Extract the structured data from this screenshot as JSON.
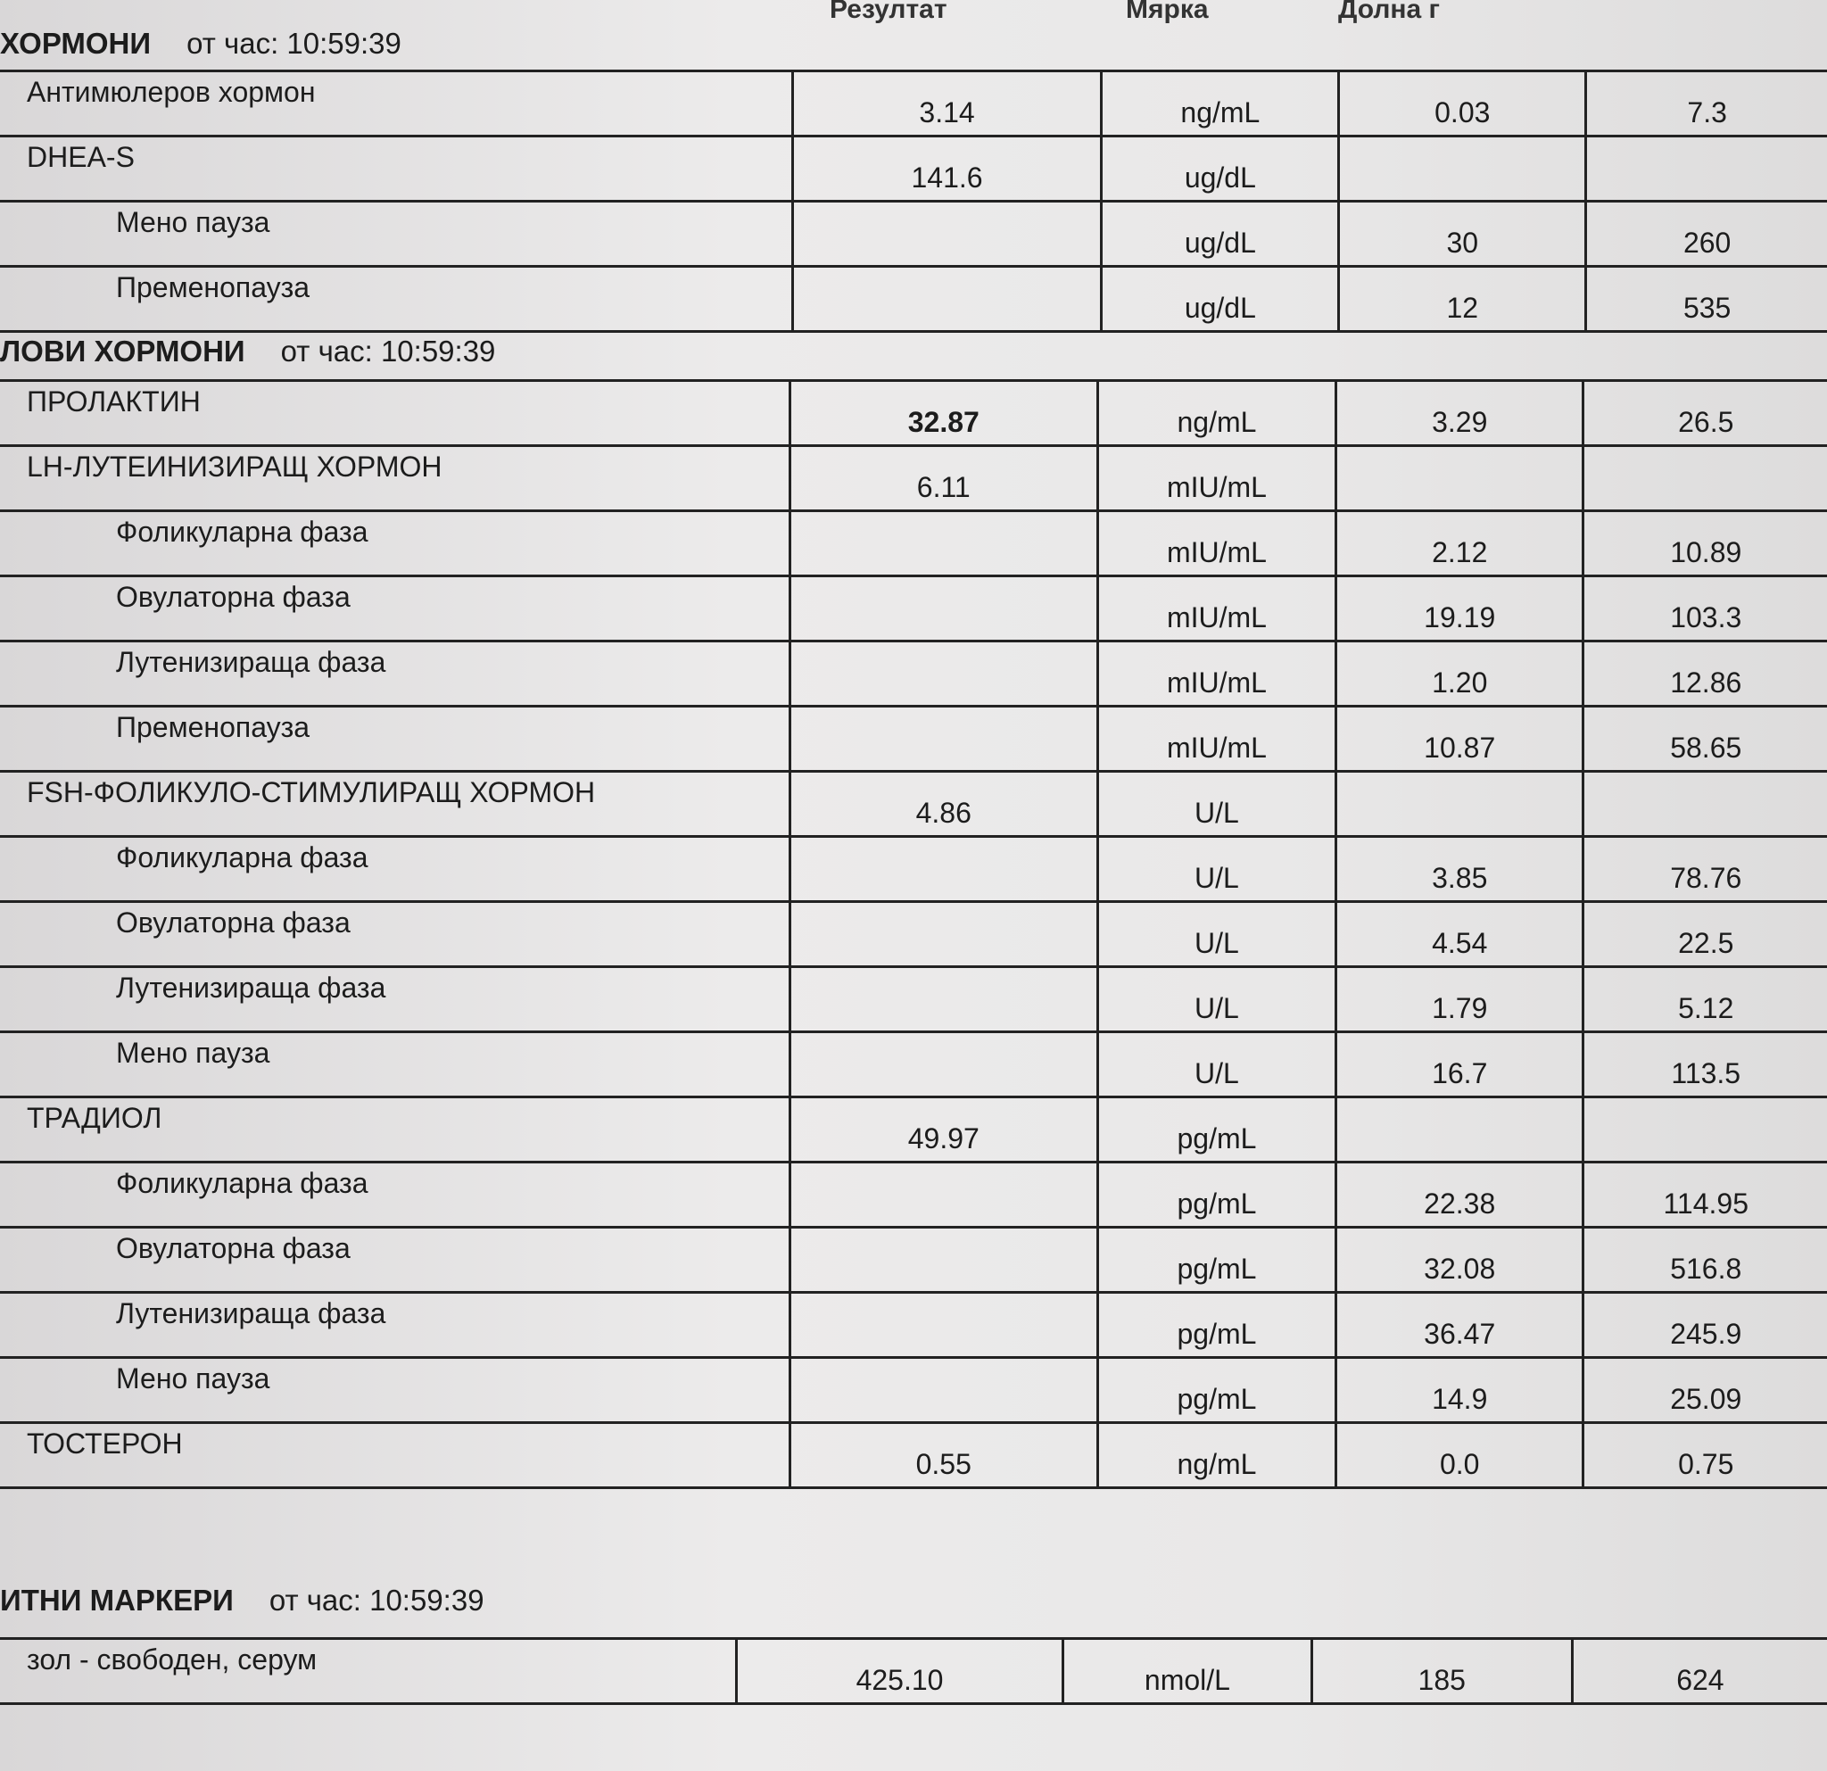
{
  "header": {
    "result": "Резултат",
    "unit": "Мярка",
    "low": "Долна г"
  },
  "sections": [
    {
      "title": "ХОРМОНИ",
      "time": "от час: 10:59:39",
      "rows": [
        {
          "name": "Антимюлеров хормон",
          "result": "3.14",
          "unit": "ng/mL",
          "low": "0.03",
          "high": "7.3",
          "sub": false
        },
        {
          "name": "DHEA-S",
          "result": "141.6",
          "unit": "ug/dL",
          "low": "",
          "high": "",
          "sub": false
        },
        {
          "name": "Мено пауза",
          "result": "",
          "unit": "ug/dL",
          "low": "30",
          "high": "260",
          "sub": true
        },
        {
          "name": "Пременопауза",
          "result": "",
          "unit": "ug/dL",
          "low": "12",
          "high": "535",
          "sub": true
        }
      ]
    },
    {
      "title": "ЛОВИ ХОРМОНИ",
      "time": "от час: 10:59:39",
      "rows": [
        {
          "name": "ПРОЛАКТИН",
          "result": "32.87",
          "unit": "ng/mL",
          "low": "3.29",
          "high": "26.5",
          "sub": false,
          "bold": true
        },
        {
          "name": "LH-ЛУТЕИНИЗИРАЩ ХОРМОН",
          "result": "6.11",
          "unit": "mIU/mL",
          "low": "",
          "high": "",
          "sub": false
        },
        {
          "name": "Фоликуларна фаза",
          "result": "",
          "unit": "mIU/mL",
          "low": "2.12",
          "high": "10.89",
          "sub": true
        },
        {
          "name": "Овулаторна фаза",
          "result": "",
          "unit": "mIU/mL",
          "low": "19.19",
          "high": "103.3",
          "sub": true
        },
        {
          "name": "Лутенизираща фаза",
          "result": "",
          "unit": "mIU/mL",
          "low": "1.20",
          "high": "12.86",
          "sub": true
        },
        {
          "name": "Пременопауза",
          "result": "",
          "unit": "mIU/mL",
          "low": "10.87",
          "high": "58.65",
          "sub": true
        },
        {
          "name": "FSH-ФОЛИКУЛО-СТИМУЛИРАЩ ХОРМОН",
          "result": "4.86",
          "unit": "U/L",
          "low": "",
          "high": "",
          "sub": false
        },
        {
          "name": "Фоликуларна фаза",
          "result": "",
          "unit": "U/L",
          "low": "3.85",
          "high": "78.76",
          "sub": true
        },
        {
          "name": "Овулаторна фаза",
          "result": "",
          "unit": "U/L",
          "low": "4.54",
          "high": "22.5",
          "sub": true
        },
        {
          "name": "Лутенизираща фаза",
          "result": "",
          "unit": "U/L",
          "low": "1.79",
          "high": "5.12",
          "sub": true
        },
        {
          "name": "Мено пауза",
          "result": "",
          "unit": "U/L",
          "low": "16.7",
          "high": "113.5",
          "sub": true
        },
        {
          "name": "ТРАДИОЛ",
          "result": "49.97",
          "unit": "pg/mL",
          "low": "",
          "high": "",
          "sub": false
        },
        {
          "name": "Фоликуларна фаза",
          "result": "",
          "unit": "pg/mL",
          "low": "22.38",
          "high": "114.95",
          "sub": true
        },
        {
          "name": "Овулаторна фаза",
          "result": "",
          "unit": "pg/mL",
          "low": "32.08",
          "high": "516.8",
          "sub": true
        },
        {
          "name": "Лутенизираща фаза",
          "result": "",
          "unit": "pg/mL",
          "low": "36.47",
          "high": "245.9",
          "sub": true
        },
        {
          "name": "Мено пауза",
          "result": "",
          "unit": "pg/mL",
          "low": "14.9",
          "high": "25.09",
          "sub": true
        },
        {
          "name": "ТОСТЕРОН",
          "result": "0.55",
          "unit": "ng/mL",
          "low": "0.0",
          "high": "0.75",
          "sub": false
        }
      ]
    },
    {
      "title": "ИТНИ МАРКЕРИ",
      "time": "от час: 10:59:39",
      "rows": [
        {
          "name": "зол - свободен, серум",
          "result": "425.10",
          "unit": "nmol/L",
          "low": "185",
          "high": "624",
          "sub": false
        }
      ]
    }
  ]
}
